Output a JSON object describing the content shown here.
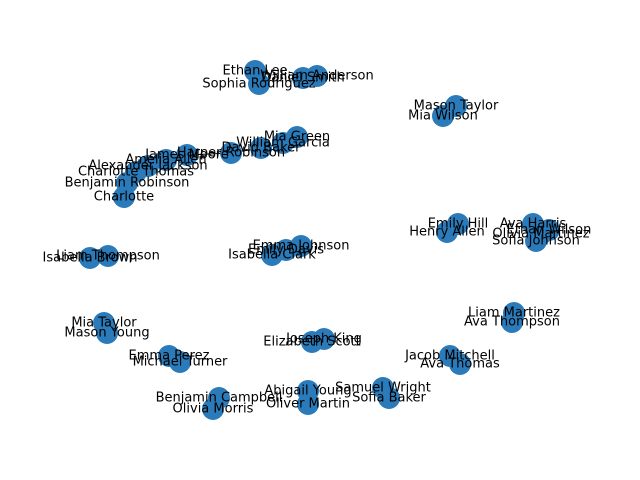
{
  "colors": {
    "node": "#2b7bba",
    "edge": "#000000",
    "label": "#000000",
    "background": "#ffffff"
  },
  "graph": {
    "nodes": [
      {
        "id": "ethan-lee",
        "label": "Ethan Lee"
      },
      {
        "id": "sophia-rodriguez",
        "label": "Sophia Rodriguez"
      },
      {
        "id": "daniel-smith",
        "label": "Daniel Smith"
      },
      {
        "id": "william-anderson",
        "label": "William Anderson"
      },
      {
        "id": "mason-taylor-1",
        "label": "Mason Taylor"
      },
      {
        "id": "mia-wilson",
        "label": "Mia Wilson"
      },
      {
        "id": "mia-green",
        "label": "Mia Green"
      },
      {
        "id": "william-garcia",
        "label": "William Garcia"
      },
      {
        "id": "david-baker",
        "label": "David Baker"
      },
      {
        "id": "harper-robinson",
        "label": "Harper Robinson"
      },
      {
        "id": "james-moore",
        "label": "James Moore"
      },
      {
        "id": "amelia-allen",
        "label": "Amelia Allen"
      },
      {
        "id": "alexander-jackson",
        "label": "Alexander Jackson"
      },
      {
        "id": "charlotte-thomas",
        "label": "Charlotte Thomas"
      },
      {
        "id": "benjamin-robinson",
        "label": "Benjamin Robinson"
      },
      {
        "id": "charlotte",
        "label": "Charlotte"
      },
      {
        "id": "emily-hill",
        "label": "Emily Hill"
      },
      {
        "id": "henry-allen",
        "label": "Henry Allen"
      },
      {
        "id": "ava-harris",
        "label": "Ava Harris"
      },
      {
        "id": "ethan-wilson",
        "label": "Ethan Wilson"
      },
      {
        "id": "olivia-martinez",
        "label": "Olivia Martinez"
      },
      {
        "id": "sofia-johnson",
        "label": "Sofia Johnson"
      },
      {
        "id": "emma-johnson",
        "label": "Emma Johnson"
      },
      {
        "id": "emily-davis",
        "label": "Emily Davis"
      },
      {
        "id": "isabella-clark",
        "label": "Isabella Clark"
      },
      {
        "id": "liam-thompson",
        "label": "Liam Thompson"
      },
      {
        "id": "isabella-brown",
        "label": "Isabella Brown"
      },
      {
        "id": "liam-martinez",
        "label": "Liam Martinez"
      },
      {
        "id": "ava-thompson",
        "label": "Ava Thompson"
      },
      {
        "id": "mia-taylor",
        "label": "Mia Taylor"
      },
      {
        "id": "mason-young",
        "label": "Mason Young"
      },
      {
        "id": "joseph-king",
        "label": "Joseph King"
      },
      {
        "id": "elizabeth-scott",
        "label": "Elizabeth Scott"
      },
      {
        "id": "jacob-mitchell",
        "label": "Jacob Mitchell"
      },
      {
        "id": "ava-thomas",
        "label": "Ava Thomas"
      },
      {
        "id": "emma-perez",
        "label": "Emma Perez"
      },
      {
        "id": "michael-turner",
        "label": "Michael Turner"
      },
      {
        "id": "samuel-wright",
        "label": "Samuel Wright"
      },
      {
        "id": "sofia-baker",
        "label": "Sofia Baker"
      },
      {
        "id": "abigail-young",
        "label": "Abigail Young"
      },
      {
        "id": "oliver-martin",
        "label": "Oliver Martin"
      },
      {
        "id": "benjamin-campbell",
        "label": "Benjamin Campbell"
      },
      {
        "id": "olivia-morris",
        "label": "Olivia Morris"
      }
    ],
    "edges": [
      [
        "ethan-lee",
        "sophia-rodriguez"
      ],
      [
        "daniel-smith",
        "william-anderson"
      ],
      [
        "mason-taylor-1",
        "mia-wilson"
      ],
      [
        "mia-green",
        "william-garcia"
      ],
      [
        "william-garcia",
        "david-baker"
      ],
      [
        "david-baker",
        "harper-robinson"
      ],
      [
        "harper-robinson",
        "james-moore"
      ],
      [
        "james-moore",
        "amelia-allen"
      ],
      [
        "amelia-allen",
        "alexander-jackson"
      ],
      [
        "alexander-jackson",
        "charlotte-thomas"
      ],
      [
        "charlotte-thomas",
        "benjamin-robinson"
      ],
      [
        "benjamin-robinson",
        "charlotte"
      ],
      [
        "emily-hill",
        "henry-allen"
      ],
      [
        "ava-harris",
        "ethan-wilson"
      ],
      [
        "ethan-wilson",
        "olivia-martinez"
      ],
      [
        "olivia-martinez",
        "sofia-johnson"
      ],
      [
        "emma-johnson",
        "emily-davis"
      ],
      [
        "emily-davis",
        "isabella-clark"
      ],
      [
        "liam-thompson",
        "isabella-brown"
      ],
      [
        "liam-martinez",
        "ava-thompson"
      ],
      [
        "mia-taylor",
        "mason-young"
      ],
      [
        "joseph-king",
        "elizabeth-scott"
      ],
      [
        "jacob-mitchell",
        "ava-thomas"
      ],
      [
        "emma-perez",
        "michael-turner"
      ],
      [
        "samuel-wright",
        "sofia-baker"
      ],
      [
        "abigail-young",
        "oliver-martin"
      ],
      [
        "benjamin-campbell",
        "olivia-morris"
      ]
    ]
  }
}
